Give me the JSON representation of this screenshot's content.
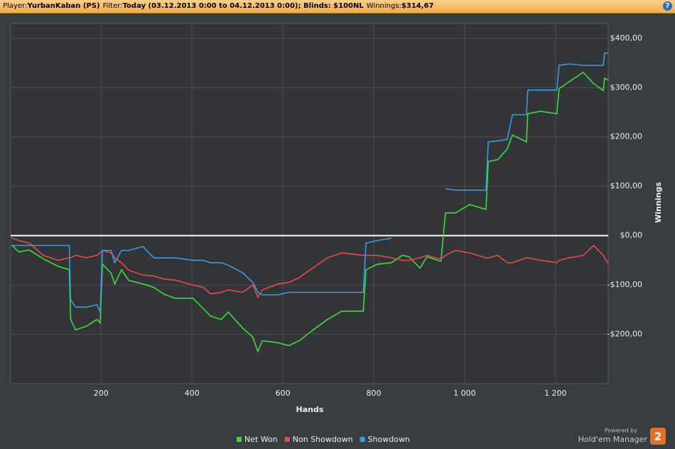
{
  "header": {
    "player_label": "Player:",
    "player": "YurbanKaban (PS)",
    "filter_label": "Filter:",
    "filter": "Today (03.12.2013 0:00 to 04.12.2013 0:00); Blinds: $100NL",
    "winnings_label": "Winnings:",
    "winnings": "$314,67"
  },
  "branding": {
    "powered_by": "Powered by",
    "product": "Hold'em Manager",
    "version": "2"
  },
  "chart_data": {
    "type": "line",
    "x_label": "Hands",
    "y_label": "Winnings",
    "x": [
      3,
      19,
      42,
      73,
      105,
      130,
      133,
      144,
      167,
      191,
      198,
      203,
      222,
      230,
      245,
      261,
      292,
      316,
      339,
      363,
      402,
      425,
      441,
      464,
      480,
      511,
      534,
      545,
      555,
      589,
      613,
      636,
      667,
      698,
      730,
      777,
      783,
      808,
      839,
      863,
      878,
      902,
      917,
      948,
      958,
      980,
      1011,
      1047,
      1052,
      1073,
      1094,
      1105,
      1136,
      1139,
      1167,
      1203,
      1208,
      1230,
      1261,
      1284,
      1305,
      1308,
      1317
    ],
    "series": [
      {
        "name": "Net Won",
        "color": "#3ddc3d",
        "values": [
          -19,
          -33,
          -29,
          -47,
          -62,
          -69,
          -170,
          -191,
          -184,
          -170,
          -177,
          -58,
          -76,
          -98,
          -69,
          -91,
          -98,
          -105,
          -119,
          -127,
          -127,
          -148,
          -163,
          -170,
          -155,
          -187,
          -206,
          -235,
          -213,
          -217,
          -223,
          -213,
          -191,
          -170,
          -153,
          -153,
          -69,
          -58,
          -55,
          -40,
          -43,
          -66,
          -43,
          -52,
          46,
          46,
          63,
          53,
          150,
          154,
          176,
          204,
          190,
          247,
          252,
          247,
          298,
          312,
          331,
          308,
          294,
          319,
          315
        ]
      },
      {
        "name": "Non Showdown",
        "color": "#e84a4a",
        "values": [
          -5,
          -10,
          -15,
          -40,
          -50,
          -45,
          -45,
          -40,
          -45,
          -40,
          -35,
          -30,
          -35,
          -45,
          -55,
          -70,
          -80,
          -82,
          -88,
          -90,
          -100,
          -105,
          -118,
          -115,
          -110,
          -115,
          -100,
          -125,
          -110,
          -98,
          -95,
          -85,
          -65,
          -45,
          -35,
          -40,
          -40,
          -40,
          -45,
          -50,
          -50,
          -45,
          -40,
          -48,
          -40,
          -30,
          -35,
          -45,
          -45,
          -40,
          -55,
          -55,
          -45,
          -45,
          -50,
          -55,
          -50,
          -45,
          -40,
          -20,
          -40,
          -45,
          -58
        ]
      },
      {
        "name": "Showdown",
        "color": "#3a9be0",
        "values": [
          -20,
          -20,
          -20,
          -20,
          -20,
          -20,
          -130,
          -145,
          -145,
          -140,
          -155,
          -30,
          -30,
          -55,
          -30,
          -30,
          -22,
          -45,
          -45,
          -45,
          -50,
          -50,
          -55,
          -55,
          -60,
          -75,
          -95,
          -115,
          -120,
          -120,
          -115,
          -115,
          -115,
          -115,
          -115,
          -115,
          -15,
          -10,
          -5,
          null,
          null,
          null,
          null,
          null,
          95,
          92,
          92,
          92,
          190,
          192,
          195,
          245,
          245,
          295,
          295,
          295,
          345,
          348,
          345,
          345,
          345,
          370,
          370
        ]
      }
    ],
    "xlim": [
      1,
      1316
    ],
    "ylim": [
      -300,
      430
    ],
    "xticks": [
      200,
      400,
      600,
      800,
      {
        "value": 1000,
        "label": "1 000"
      },
      {
        "value": 1200,
        "label": "1 200"
      }
    ],
    "yticks": [
      {
        "value": -200,
        "label": "-$200,00"
      },
      {
        "value": -100,
        "label": "-$100,00"
      },
      {
        "value": 0,
        "label": "$0,00"
      },
      {
        "value": 100,
        "label": "$100,00"
      },
      {
        "value": 200,
        "label": "$200,00"
      },
      {
        "value": 300,
        "label": "$300,00"
      },
      {
        "value": 400,
        "label": "$400,00"
      }
    ],
    "grid": true,
    "zero_line": true,
    "legend": "bottom"
  }
}
